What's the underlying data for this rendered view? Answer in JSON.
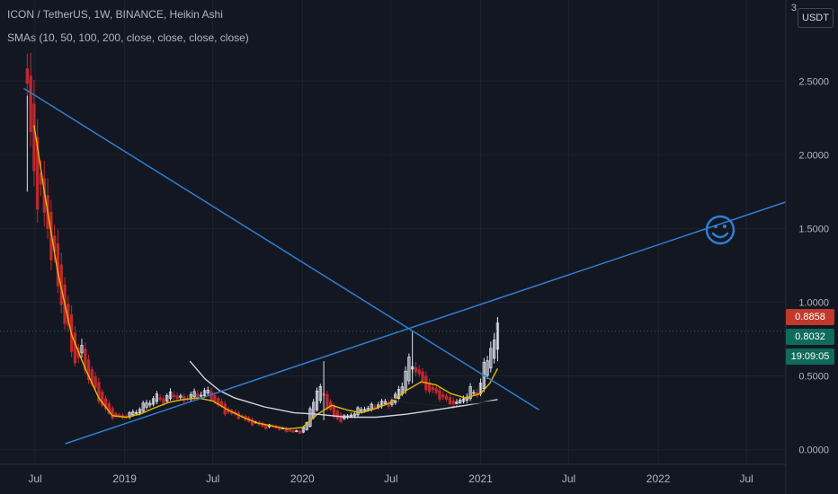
{
  "header": {
    "title": "ICON / TetherUS, 1W, BINANCE, Heikin Ashi",
    "indicator": "SMAs (10, 50, 100, 200, close, close, close, close)",
    "axis_top_label": "3",
    "currency_badge": "USDT"
  },
  "colors": {
    "background": "#131722",
    "grid": "#1e222d",
    "up_candle": "#e0e3eb",
    "down_candle": "#c0292f",
    "sma10": "#e6b800",
    "sma50": "#d1d4dc",
    "sma100": "#202020",
    "trendline": "#2f7fd0",
    "last_price_tag": "#c0392b",
    "price_tag": "#0f6b5a"
  },
  "price_tags": {
    "last": "0.8858",
    "current": "0.8032",
    "countdown": "19:09:05"
  },
  "annotation": {
    "icon": "smiley-icon"
  },
  "chart_data": {
    "type": "candlestick",
    "title": "ICON / TetherUS, 1W, BINANCE, Heikin Ashi",
    "y_ticks": [
      "0.0000",
      "0.5000",
      "1.0000",
      "1.5000",
      "2.0000",
      "2.5000"
    ],
    "ylim": [
      -0.1,
      3.05
    ],
    "x_ticks": [
      {
        "label": "Jul",
        "date": "2018-07-01"
      },
      {
        "label": "2019",
        "date": "2019-01-01"
      },
      {
        "label": "Jul",
        "date": "2019-07-01"
      },
      {
        "label": "2020",
        "date": "2020-01-01"
      },
      {
        "label": "Jul",
        "date": "2020-07-01"
      },
      {
        "label": "2021",
        "date": "2021-01-01"
      },
      {
        "label": "Jul",
        "date": "2021-07-01"
      },
      {
        "label": "2022",
        "date": "2022-01-01"
      },
      {
        "label": "Jul",
        "date": "2022-07-01"
      }
    ],
    "xlim": [
      "2018-04-20",
      "2022-09-20"
    ],
    "candle_points": [
      [
        "2018-06-15",
        2.4
      ],
      [
        "2018-06-29",
        1.85
      ],
      [
        "2018-07-13",
        1.7
      ],
      [
        "2018-07-27",
        1.5
      ],
      [
        "2018-08-10",
        1.25
      ],
      [
        "2018-08-24",
        1.0
      ],
      [
        "2018-09-07",
        0.78
      ],
      [
        "2018-09-21",
        0.6
      ],
      [
        "2018-10-05",
        0.66
      ],
      [
        "2018-10-19",
        0.48
      ],
      [
        "2018-11-02",
        0.4
      ],
      [
        "2018-11-16",
        0.3
      ],
      [
        "2018-11-30",
        0.24
      ],
      [
        "2018-12-14",
        0.22
      ],
      [
        "2018-12-28",
        0.22
      ],
      [
        "2019-01-11",
        0.24
      ],
      [
        "2019-01-25",
        0.26
      ],
      [
        "2019-02-08",
        0.3
      ],
      [
        "2019-02-22",
        0.33
      ],
      [
        "2019-03-08",
        0.36
      ],
      [
        "2019-03-22",
        0.33
      ],
      [
        "2019-04-05",
        0.38
      ],
      [
        "2019-04-19",
        0.36
      ],
      [
        "2019-05-03",
        0.33
      ],
      [
        "2019-05-17",
        0.38
      ],
      [
        "2019-05-31",
        0.36
      ],
      [
        "2019-06-14",
        0.4
      ],
      [
        "2019-06-28",
        0.36
      ],
      [
        "2019-07-12",
        0.3
      ],
      [
        "2019-07-26",
        0.26
      ],
      [
        "2019-08-09",
        0.24
      ],
      [
        "2019-08-23",
        0.23
      ],
      [
        "2019-09-06",
        0.2
      ],
      [
        "2019-09-20",
        0.18
      ],
      [
        "2019-10-04",
        0.17
      ],
      [
        "2019-10-18",
        0.15
      ],
      [
        "2019-11-01",
        0.16
      ],
      [
        "2019-11-15",
        0.14
      ],
      [
        "2019-11-29",
        0.13
      ],
      [
        "2019-12-13",
        0.12
      ],
      [
        "2019-12-27",
        0.12
      ],
      [
        "2020-01-10",
        0.18
      ],
      [
        "2020-01-24",
        0.35
      ],
      [
        "2020-02-07",
        0.42
      ],
      [
        "2020-02-21",
        0.3
      ],
      [
        "2020-03-06",
        0.22
      ],
      [
        "2020-03-20",
        0.2
      ],
      [
        "2020-04-03",
        0.23
      ],
      [
        "2020-04-17",
        0.25
      ],
      [
        "2020-05-01",
        0.28
      ],
      [
        "2020-05-15",
        0.28
      ],
      [
        "2020-05-29",
        0.3
      ],
      [
        "2020-06-12",
        0.32
      ],
      [
        "2020-06-26",
        0.31
      ],
      [
        "2020-07-10",
        0.36
      ],
      [
        "2020-07-24",
        0.45
      ],
      [
        "2020-08-07",
        0.6
      ],
      [
        "2020-08-21",
        0.55
      ],
      [
        "2020-09-04",
        0.45
      ],
      [
        "2020-09-18",
        0.4
      ],
      [
        "2020-10-02",
        0.38
      ],
      [
        "2020-10-16",
        0.35
      ],
      [
        "2020-10-30",
        0.31
      ],
      [
        "2020-11-13",
        0.31
      ],
      [
        "2020-11-27",
        0.35
      ],
      [
        "2020-12-11",
        0.4
      ],
      [
        "2020-12-25",
        0.38
      ],
      [
        "2021-01-08",
        0.55
      ],
      [
        "2021-01-22",
        0.7
      ],
      [
        "2021-02-05",
        0.8
      ]
    ],
    "sma_series": [
      {
        "name": "SMA 10",
        "color": "#e6b800",
        "points": [
          [
            "2018-06-29",
            2.2
          ],
          [
            "2018-07-20",
            1.75
          ],
          [
            "2018-08-17",
            1.2
          ],
          [
            "2018-09-14",
            0.78
          ],
          [
            "2018-10-12",
            0.55
          ],
          [
            "2018-11-09",
            0.35
          ],
          [
            "2018-12-07",
            0.23
          ],
          [
            "2019-01-04",
            0.22
          ],
          [
            "2019-02-01",
            0.24
          ],
          [
            "2019-03-01",
            0.28
          ],
          [
            "2019-04-01",
            0.32
          ],
          [
            "2019-05-01",
            0.34
          ],
          [
            "2019-06-01",
            0.35
          ],
          [
            "2019-07-01",
            0.33
          ],
          [
            "2019-08-01",
            0.27
          ],
          [
            "2019-09-01",
            0.22
          ],
          [
            "2019-10-01",
            0.18
          ],
          [
            "2019-11-01",
            0.16
          ],
          [
            "2019-12-01",
            0.14
          ],
          [
            "2020-01-01",
            0.15
          ],
          [
            "2020-02-01",
            0.24
          ],
          [
            "2020-03-01",
            0.3
          ],
          [
            "2020-04-01",
            0.27
          ],
          [
            "2020-05-01",
            0.25
          ],
          [
            "2020-06-01",
            0.28
          ],
          [
            "2020-07-01",
            0.32
          ],
          [
            "2020-08-01",
            0.4
          ],
          [
            "2020-09-01",
            0.46
          ],
          [
            "2020-10-01",
            0.44
          ],
          [
            "2020-11-01",
            0.38
          ],
          [
            "2020-12-01",
            0.35
          ],
          [
            "2021-01-01",
            0.38
          ],
          [
            "2021-01-20",
            0.45
          ],
          [
            "2021-02-05",
            0.55
          ]
        ]
      },
      {
        "name": "SMA 50",
        "color": "#d1d4dc",
        "points": [
          [
            "2019-05-15",
            0.6
          ],
          [
            "2019-06-15",
            0.48
          ],
          [
            "2019-07-15",
            0.4
          ],
          [
            "2019-08-15",
            0.35
          ],
          [
            "2019-09-15",
            0.32
          ],
          [
            "2019-10-15",
            0.29
          ],
          [
            "2019-11-15",
            0.27
          ],
          [
            "2019-12-15",
            0.25
          ],
          [
            "2020-02-01",
            0.24
          ],
          [
            "2020-04-01",
            0.22
          ],
          [
            "2020-06-01",
            0.22
          ],
          [
            "2020-08-01",
            0.24
          ],
          [
            "2020-10-01",
            0.27
          ],
          [
            "2020-12-01",
            0.3
          ],
          [
            "2021-02-05",
            0.34
          ]
        ]
      },
      {
        "name": "SMA 100",
        "color": "#202020",
        "points": [
          [
            "2020-06-01",
            0.38
          ],
          [
            "2020-07-01",
            0.35
          ],
          [
            "2020-08-01",
            0.32
          ],
          [
            "2020-09-01",
            0.31
          ],
          [
            "2020-10-01",
            0.3
          ],
          [
            "2020-11-01",
            0.3
          ],
          [
            "2020-12-01",
            0.31
          ],
          [
            "2021-01-01",
            0.32
          ],
          [
            "2021-02-05",
            0.33
          ]
        ]
      }
    ],
    "trendlines": [
      {
        "name": "descending",
        "from": [
          "2018-06-08",
          2.45
        ],
        "to": [
          "2021-05-01",
          0.27
        ]
      },
      {
        "name": "ascending",
        "from": [
          "2018-09-01",
          0.04
        ],
        "to": [
          "2022-09-20",
          1.68
        ]
      }
    ],
    "last_price": 0.8858,
    "current_price": 0.8032
  }
}
